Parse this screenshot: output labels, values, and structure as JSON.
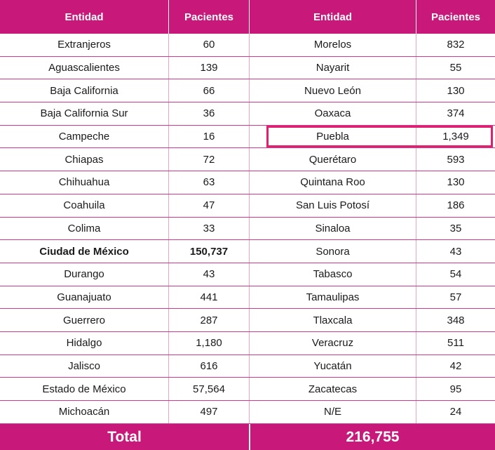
{
  "headers": [
    "Entidad",
    "Pacientes",
    "Entidad",
    "Pacientes"
  ],
  "rows": [
    {
      "e1": "Extranjeros",
      "p1": "60",
      "e2": "Morelos",
      "p2": "832"
    },
    {
      "e1": "Aguascalientes",
      "p1": "139",
      "e2": "Nayarit",
      "p2": "55"
    },
    {
      "e1": "Baja California",
      "p1": "66",
      "e2": "Nuevo León",
      "p2": "130"
    },
    {
      "e1": "Baja California Sur",
      "p1": "36",
      "e2": "Oaxaca",
      "p2": "374"
    },
    {
      "e1": "Campeche",
      "p1": "16",
      "e2": "Puebla",
      "p2": "1,349",
      "highlight_right": true
    },
    {
      "e1": "Chiapas",
      "p1": "72",
      "e2": "Querétaro",
      "p2": "593"
    },
    {
      "e1": "Chihuahua",
      "p1": "63",
      "e2": "Quintana Roo",
      "p2": "130"
    },
    {
      "e1": "Coahuila",
      "p1": "47",
      "e2": "San Luis Potosí",
      "p2": "186"
    },
    {
      "e1": "Colima",
      "p1": "33",
      "e2": "Sinaloa",
      "p2": "35"
    },
    {
      "e1": "Ciudad de México",
      "p1": "150,737",
      "e2": "Sonora",
      "p2": "43",
      "bold_left": true
    },
    {
      "e1": "Durango",
      "p1": "43",
      "e2": "Tabasco",
      "p2": "54"
    },
    {
      "e1": "Guanajuato",
      "p1": "441",
      "e2": "Tamaulipas",
      "p2": "57"
    },
    {
      "e1": "Guerrero",
      "p1": "287",
      "e2": "Tlaxcala",
      "p2": "348"
    },
    {
      "e1": "Hidalgo",
      "p1": "1,180",
      "e2": "Veracruz",
      "p2": "511"
    },
    {
      "e1": "Jalisco",
      "p1": "616",
      "e2": "Yucatán",
      "p2": "42"
    },
    {
      "e1": "Estado de México",
      "p1": "57,564",
      "e2": "Zacatecas",
      "p2": "95"
    },
    {
      "e1": "Michoacán",
      "p1": "497",
      "e2": "N/E",
      "p2": "24"
    }
  ],
  "total": {
    "label": "Total",
    "value": "216,755"
  },
  "colors": {
    "header": "#c8187a",
    "highlight": "#e0206e",
    "row_line": "#cf3c8f"
  }
}
